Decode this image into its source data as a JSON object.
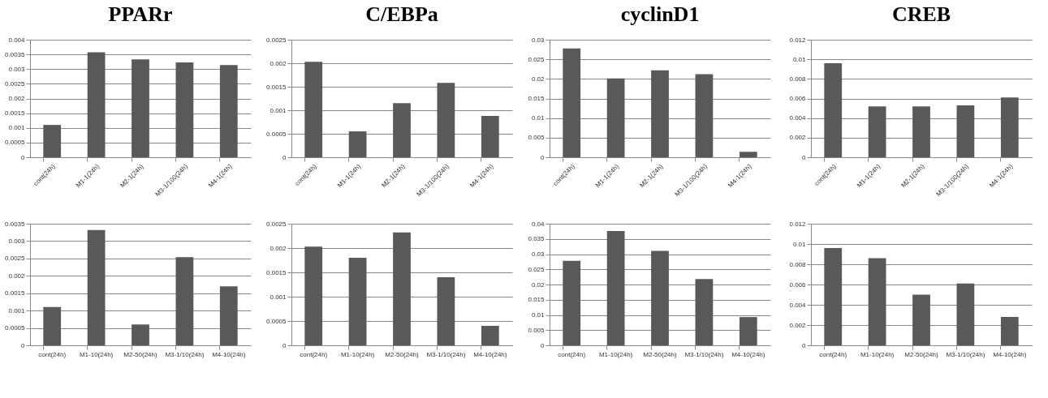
{
  "chart_data": [
    {
      "type": "bar",
      "title": "PPARr",
      "categories": [
        "cont(24h)",
        "M1-1(24h)",
        "M2-1(24h)",
        "M3-1/100(24h)",
        "M4-1(24h)"
      ],
      "values": [
        0.0011,
        0.00357,
        0.00333,
        0.00323,
        0.00314
      ],
      "color": "#595959",
      "ylim": [
        0,
        0.004
      ],
      "yticks": [
        0,
        0.0005,
        0.001,
        0.0015,
        0.002,
        0.0025,
        0.003,
        0.0035,
        0.004
      ],
      "grid": "y"
    },
    {
      "type": "bar",
      "title": "C/EBPa",
      "categories": [
        "cont(24h)",
        "M1-1(24h)",
        "M2-1(24h)",
        "M3-1/100(24h)",
        "M4-1(24h)"
      ],
      "values": [
        0.00203,
        0.00055,
        0.00115,
        0.00158,
        0.00088
      ],
      "color": "#595959",
      "ylim": [
        0,
        0.0025
      ],
      "yticks": [
        0,
        0.0005,
        0.001,
        0.0015,
        0.002,
        0.0025
      ],
      "grid": "y"
    },
    {
      "type": "bar",
      "title": "cyclinD1",
      "categories": [
        "cont(24h)",
        "M1-1(24h)",
        "M2-1(24h)",
        "M3-1/100(24h)",
        "M4-1(24h)"
      ],
      "values": [
        0.0278,
        0.0201,
        0.0222,
        0.0212,
        0.0014
      ],
      "color": "#595959",
      "ylim": [
        0,
        0.03
      ],
      "yticks": [
        0,
        0.005,
        0.01,
        0.015,
        0.02,
        0.025,
        0.03
      ],
      "grid": "y"
    },
    {
      "type": "bar",
      "title": "CREB",
      "categories": [
        "cont(24h)",
        "M1-1(24h)",
        "M2-1(24h)",
        "M3-1/100(24h)",
        "M4-1(24h)"
      ],
      "values": [
        0.0096,
        0.0052,
        0.0052,
        0.0053,
        0.0061
      ],
      "color": "#595959",
      "ylim": [
        0,
        0.012
      ],
      "yticks": [
        0,
        0.002,
        0.004,
        0.006,
        0.008,
        0.01,
        0.012
      ],
      "grid": "y"
    },
    {
      "type": "bar",
      "categories": [
        "cont(24h)",
        "M1-10(24h)",
        "M2-50(24h)",
        "M3-1/10(24h)",
        "M4-10(24h)"
      ],
      "values": [
        0.0011,
        0.00332,
        0.0006,
        0.00254,
        0.0017
      ],
      "color": "#595959",
      "ylim": [
        0,
        0.0035
      ],
      "yticks": [
        0,
        0.0005,
        0.001,
        0.0015,
        0.002,
        0.0025,
        0.003,
        0.0035
      ],
      "grid": "y"
    },
    {
      "type": "bar",
      "categories": [
        "cont(24h)",
        "M1-10(24h)",
        "M2-50(24h)",
        "M3-1/10(24h)",
        "M4-10(24h)"
      ],
      "values": [
        0.00203,
        0.0018,
        0.00232,
        0.0014,
        0.0004
      ],
      "color": "#595959",
      "ylim": [
        0,
        0.0025
      ],
      "yticks": [
        0,
        0.0005,
        0.001,
        0.0015,
        0.002,
        0.0025
      ],
      "grid": "y"
    },
    {
      "type": "bar",
      "categories": [
        "cont(24h)",
        "M1-10(24h)",
        "M2-50(24h)",
        "M3-1/10(24h)",
        "M4-10(24h)"
      ],
      "values": [
        0.0278,
        0.0376,
        0.0311,
        0.0218,
        0.0093
      ],
      "color": "#595959",
      "ylim": [
        0,
        0.04
      ],
      "yticks": [
        0,
        0.005,
        0.01,
        0.015,
        0.02,
        0.025,
        0.03,
        0.035,
        0.04
      ],
      "grid": "y"
    },
    {
      "type": "bar",
      "categories": [
        "cont(24h)",
        "M1-10(24h)",
        "M2-50(24h)",
        "M3-1/10(24h)",
        "M4-10(24h)"
      ],
      "values": [
        0.0096,
        0.0086,
        0.005,
        0.0061,
        0.0028
      ],
      "color": "#595959",
      "ylim": [
        0,
        0.012
      ],
      "yticks": [
        0,
        0.002,
        0.004,
        0.006,
        0.008,
        0.01,
        0.012
      ],
      "grid": "y"
    }
  ]
}
